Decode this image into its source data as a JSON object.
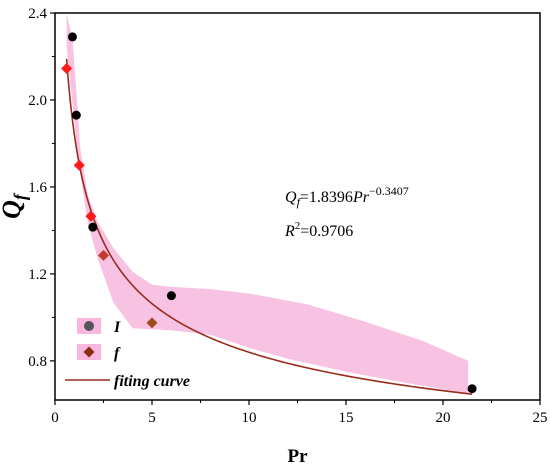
{
  "chart_data": {
    "type": "scatter",
    "xlabel": "Pr",
    "ylabel": {
      "main": "Q",
      "sub": "f"
    },
    "xlim": [
      0,
      25
    ],
    "ylim": [
      0.62,
      2.4
    ],
    "x_ticks": [
      0,
      5,
      10,
      15,
      20,
      25
    ],
    "y_ticks": [
      0.8,
      1.2,
      1.6,
      2.0,
      2.4
    ],
    "x_tick_labels": [
      "0",
      "5",
      "10",
      "15",
      "20",
      "25"
    ],
    "y_tick_labels": [
      "0.8",
      "1.2",
      "1.6",
      "2.0",
      "2.4"
    ],
    "grid": false,
    "legend_position": "bottom-left",
    "series": [
      {
        "name": "I",
        "marker": "circle",
        "color": "#000000",
        "points": [
          {
            "x": 0.9,
            "y": 2.29
          },
          {
            "x": 1.1,
            "y": 1.93
          },
          {
            "x": 1.95,
            "y": 1.415
          },
          {
            "x": 6.0,
            "y": 1.1
          },
          {
            "x": 21.5,
            "y": 0.672
          }
        ]
      },
      {
        "name": "f",
        "marker": "diamond",
        "color": "#8b2c10",
        "points": [
          {
            "x": 0.6,
            "y": 2.145
          },
          {
            "x": 1.25,
            "y": 1.7
          },
          {
            "x": 1.85,
            "y": 1.465
          },
          {
            "x": 2.5,
            "y": 1.285
          },
          {
            "x": 5.0,
            "y": 0.975
          }
        ]
      },
      {
        "name": "fiting curve",
        "type": "line",
        "color": "#9b2b1c",
        "equation": {
          "coefficient": 1.8396,
          "exponent": -0.3407
        },
        "x_range": [
          0.6,
          21.5
        ]
      }
    ],
    "confidence_band": {
      "color": "#f7b7de",
      "upper": [
        {
          "x": 0.6,
          "y": 2.4
        },
        {
          "x": 0.9,
          "y": 2.28
        },
        {
          "x": 1.1,
          "y": 2.05
        },
        {
          "x": 1.3,
          "y": 1.78
        },
        {
          "x": 1.7,
          "y": 1.56
        },
        {
          "x": 2.2,
          "y": 1.44
        },
        {
          "x": 3.0,
          "y": 1.32
        },
        {
          "x": 4.0,
          "y": 1.21
        },
        {
          "x": 5.0,
          "y": 1.15
        },
        {
          "x": 6.0,
          "y": 1.14
        },
        {
          "x": 8.0,
          "y": 1.13
        },
        {
          "x": 10.0,
          "y": 1.11
        },
        {
          "x": 13.0,
          "y": 1.06
        },
        {
          "x": 16.0,
          "y": 0.98
        },
        {
          "x": 19.0,
          "y": 0.89
        },
        {
          "x": 21.3,
          "y": 0.8
        }
      ],
      "lower": [
        {
          "x": 21.3,
          "y": 0.65
        },
        {
          "x": 18.0,
          "y": 0.7
        },
        {
          "x": 15.0,
          "y": 0.75
        },
        {
          "x": 12.0,
          "y": 0.81
        },
        {
          "x": 10.0,
          "y": 0.86
        },
        {
          "x": 8.0,
          "y": 0.92
        },
        {
          "x": 6.0,
          "y": 0.94
        },
        {
          "x": 5.0,
          "y": 0.945
        },
        {
          "x": 4.0,
          "y": 0.95
        },
        {
          "x": 3.0,
          "y": 1.07
        },
        {
          "x": 2.2,
          "y": 1.27
        },
        {
          "x": 1.7,
          "y": 1.43
        },
        {
          "x": 1.2,
          "y": 1.72
        },
        {
          "x": 0.8,
          "y": 2.07
        },
        {
          "x": 0.6,
          "y": 2.25
        }
      ]
    },
    "annotation": {
      "equation_lhs_main": "Q",
      "equation_lhs_sub": "f",
      "equation_rhs_coeff": "=1.8396",
      "equation_rhs_var": "Pr",
      "equation_rhs_exp": "−0.3407",
      "r2_main": "R",
      "r2_sup": "2",
      "r2_value": "=0.9706"
    }
  }
}
